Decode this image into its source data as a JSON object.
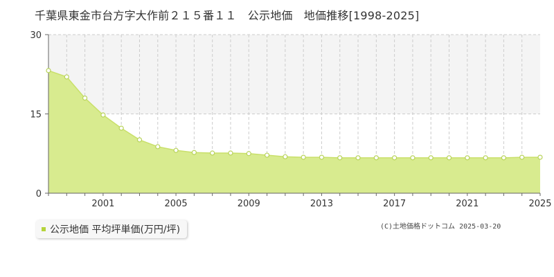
{
  "title": "千葉県東金市台方字大作前２１５番１１　公示地価　地価推移[1998-2025]",
  "colors": {
    "fill": "#d8eb8f",
    "line": "#c9e06a",
    "marker_stroke": "#b8d35a",
    "band": "#f4f4f4",
    "grid": "#cccccc",
    "axis": "#666666",
    "swatch": "#b5d43b"
  },
  "legend": {
    "label": "公示地価 平均坪単価(万円/坪)"
  },
  "copyright": "(C)土地価格ドットコム 2025-03-20",
  "chart_data": {
    "type": "area",
    "title": "千葉県東金市台方字大作前２１５番１１　公示地価　地価推移[1998-2025]",
    "xlim": [
      1998,
      2025
    ],
    "ylim": [
      0,
      30
    ],
    "y_ticks": [
      0,
      15,
      30
    ],
    "x_tick_labels": [
      2001,
      2005,
      2009,
      2013,
      2017,
      2021,
      2025
    ],
    "grid": true,
    "legend_position": "bottom-left",
    "series": [
      {
        "name": "公示地価 平均坪単価(万円/坪)",
        "x": [
          1998,
          1999,
          2000,
          2001,
          2002,
          2003,
          2004,
          2005,
          2006,
          2007,
          2008,
          2009,
          2010,
          2011,
          2012,
          2013,
          2014,
          2015,
          2016,
          2017,
          2018,
          2019,
          2020,
          2021,
          2022,
          2023,
          2024,
          2025
        ],
        "values": [
          23.2,
          22.0,
          18.0,
          14.8,
          12.3,
          10.1,
          8.8,
          8.1,
          7.7,
          7.6,
          7.6,
          7.5,
          7.2,
          6.9,
          6.8,
          6.8,
          6.7,
          6.7,
          6.7,
          6.7,
          6.7,
          6.7,
          6.7,
          6.7,
          6.7,
          6.7,
          6.8,
          6.8
        ]
      }
    ]
  }
}
